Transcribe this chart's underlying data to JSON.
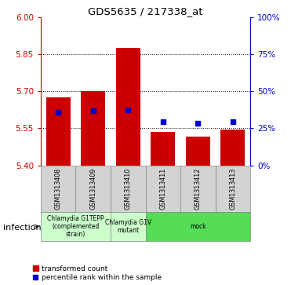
{
  "title": "GDS5635 / 217338_at",
  "samples": [
    "GSM1313408",
    "GSM1313409",
    "GSM1313410",
    "GSM1313411",
    "GSM1313412",
    "GSM1313413"
  ],
  "bar_bottoms": [
    5.4,
    5.4,
    5.4,
    5.4,
    5.4,
    5.4
  ],
  "bar_tops": [
    5.675,
    5.7,
    5.875,
    5.535,
    5.515,
    5.545
  ],
  "blue_y": [
    5.615,
    5.62,
    5.625,
    5.575,
    5.57,
    5.578
  ],
  "ylim": [
    5.4,
    6.0
  ],
  "yticks_left": [
    5.4,
    5.55,
    5.7,
    5.85,
    6.0
  ],
  "yticks_right_vals": [
    0,
    25,
    50,
    75,
    100
  ],
  "yticks_right_pos": [
    5.4,
    5.55,
    5.7,
    5.85,
    6.0
  ],
  "hlines": [
    5.55,
    5.7,
    5.85
  ],
  "bar_color": "#cc0000",
  "blue_color": "#0000cc",
  "group_labels": [
    "Chlamydia G1TEPP\n(complemented\nstrain)",
    "Chlamydia G1V\nmutant",
    "mock"
  ],
  "group_colors": [
    "#ccffcc",
    "#ccffcc",
    "#55dd55"
  ],
  "group_ranges": [
    [
      0,
      2
    ],
    [
      2,
      3
    ],
    [
      3,
      6
    ]
  ],
  "sample_box_color": "#d3d3d3",
  "factor_label": "infection",
  "legend_red": "transformed count",
  "legend_blue": "percentile rank within the sample",
  "left_color": "#cc0000",
  "right_color": "#0000cc",
  "bar_width": 0.7
}
